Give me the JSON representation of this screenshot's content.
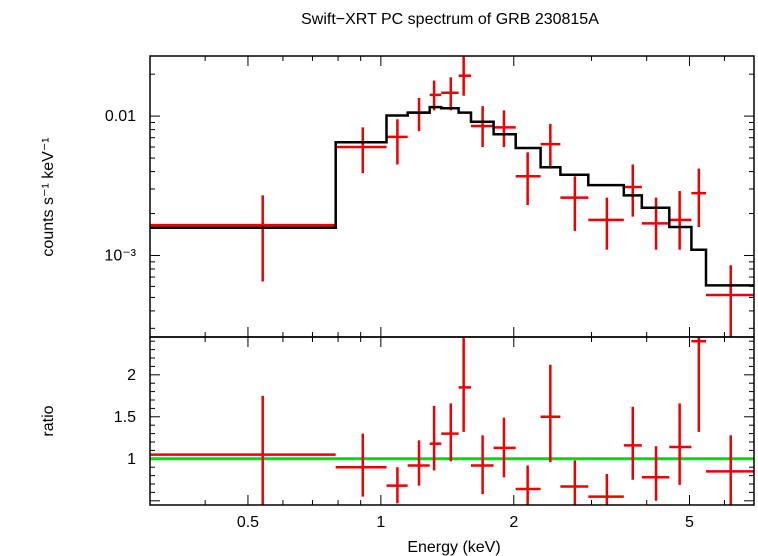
{
  "chart_data": {
    "type": "scatter",
    "title": "Swift−XRT PC spectrum of GRB 230815A",
    "xlabel": "Energy (keV)",
    "xscale": "log",
    "xlim": [
      0.3,
      7.0
    ],
    "x_ticks": [
      {
        "value": 0.5,
        "label": "0.5"
      },
      {
        "value": 1,
        "label": "1"
      },
      {
        "value": 2,
        "label": "2"
      },
      {
        "value": 5,
        "label": "5"
      }
    ],
    "panels": [
      {
        "name": "spectrum",
        "ylabel": "counts s⁻¹ keV⁻¹",
        "yscale": "log",
        "ylim": [
          0.00026,
          0.027
        ],
        "y_ticks": [
          {
            "value": 0.01,
            "label": "0.01"
          },
          {
            "value": 0.001,
            "label": "10⁻³"
          }
        ],
        "series": [
          {
            "role": "data",
            "color": "#ee0000",
            "points": [
              {
                "x": 0.54,
                "xlo": 0.3,
                "xhi": 0.79,
                "y": 0.00165,
                "ylo": 0.00065,
                "yhi": 0.0027
              },
              {
                "x": 0.91,
                "xlo": 0.79,
                "xhi": 1.03,
                "y": 0.006,
                "ylo": 0.0039,
                "yhi": 0.0083
              },
              {
                "x": 1.09,
                "xlo": 1.03,
                "xhi": 1.15,
                "y": 0.0071,
                "ylo": 0.0045,
                "yhi": 0.0095
              },
              {
                "x": 1.22,
                "xlo": 1.15,
                "xhi": 1.29,
                "y": 0.0106,
                "ylo": 0.0078,
                "yhi": 0.0135
              },
              {
                "x": 1.32,
                "xlo": 1.29,
                "xhi": 1.37,
                "y": 0.0142,
                "ylo": 0.011,
                "yhi": 0.018
              },
              {
                "x": 1.44,
                "xlo": 1.37,
                "xhi": 1.5,
                "y": 0.0147,
                "ylo": 0.011,
                "yhi": 0.019
              },
              {
                "x": 1.54,
                "xlo": 1.5,
                "xhi": 1.6,
                "y": 0.0195,
                "ylo": 0.014,
                "yhi": 0.027
              },
              {
                "x": 1.7,
                "xlo": 1.6,
                "xhi": 1.8,
                "y": 0.0085,
                "ylo": 0.006,
                "yhi": 0.0118
              },
              {
                "x": 1.9,
                "xlo": 1.8,
                "xhi": 2.02,
                "y": 0.0083,
                "ylo": 0.006,
                "yhi": 0.011
              },
              {
                "x": 2.15,
                "xlo": 2.02,
                "xhi": 2.3,
                "y": 0.0037,
                "ylo": 0.0023,
                "yhi": 0.0055
              },
              {
                "x": 2.42,
                "xlo": 2.3,
                "xhi": 2.55,
                "y": 0.0063,
                "ylo": 0.0042,
                "yhi": 0.0088
              },
              {
                "x": 2.75,
                "xlo": 2.55,
                "xhi": 2.95,
                "y": 0.0026,
                "ylo": 0.0015,
                "yhi": 0.0037
              },
              {
                "x": 3.25,
                "xlo": 2.95,
                "xhi": 3.55,
                "y": 0.0018,
                "ylo": 0.0011,
                "yhi": 0.0026
              },
              {
                "x": 3.72,
                "xlo": 3.55,
                "xhi": 3.9,
                "y": 0.0031,
                "ylo": 0.0019,
                "yhi": 0.0045
              },
              {
                "x": 4.2,
                "xlo": 3.9,
                "xhi": 4.5,
                "y": 0.0017,
                "ylo": 0.0011,
                "yhi": 0.0026
              },
              {
                "x": 4.75,
                "xlo": 4.5,
                "xhi": 5.05,
                "y": 0.0018,
                "ylo": 0.0011,
                "yhi": 0.0029
              },
              {
                "x": 5.25,
                "xlo": 5.05,
                "xhi": 5.45,
                "y": 0.0028,
                "ylo": 0.0016,
                "yhi": 0.0042
              },
              {
                "x": 6.2,
                "xlo": 5.45,
                "xhi": 7.0,
                "y": 0.00052,
                "ylo": 0.00026,
                "yhi": 0.00085
              }
            ]
          },
          {
            "role": "model",
            "color": "#000000",
            "type": "step",
            "bins": [
              {
                "xlo": 0.3,
                "xhi": 0.79,
                "y": 0.00158
              },
              {
                "xlo": 0.79,
                "xhi": 1.03,
                "y": 0.0065
              },
              {
                "xlo": 1.03,
                "xhi": 1.15,
                "y": 0.0101
              },
              {
                "xlo": 1.15,
                "xhi": 1.29,
                "y": 0.0106
              },
              {
                "xlo": 1.29,
                "xhi": 1.37,
                "y": 0.0116
              },
              {
                "xlo": 1.37,
                "xhi": 1.5,
                "y": 0.0114
              },
              {
                "xlo": 1.5,
                "xhi": 1.6,
                "y": 0.0106
              },
              {
                "xlo": 1.6,
                "xhi": 1.8,
                "y": 0.0091
              },
              {
                "xlo": 1.8,
                "xhi": 2.02,
                "y": 0.0074
              },
              {
                "xlo": 2.02,
                "xhi": 2.3,
                "y": 0.0059
              },
              {
                "xlo": 2.3,
                "xhi": 2.55,
                "y": 0.0043
              },
              {
                "xlo": 2.55,
                "xhi": 2.95,
                "y": 0.0038
              },
              {
                "xlo": 2.95,
                "xhi": 3.55,
                "y": 0.0032
              },
              {
                "xlo": 3.55,
                "xhi": 3.9,
                "y": 0.0027
              },
              {
                "xlo": 3.9,
                "xhi": 4.5,
                "y": 0.0022
              },
              {
                "xlo": 4.5,
                "xhi": 5.05,
                "y": 0.0016
              },
              {
                "xlo": 5.05,
                "xhi": 5.45,
                "y": 0.0011
              },
              {
                "xlo": 5.45,
                "xhi": 7.0,
                "y": 0.00061
              }
            ]
          }
        ]
      },
      {
        "name": "ratio",
        "ylabel": "ratio",
        "yscale": "linear",
        "ylim": [
          0.45,
          2.45
        ],
        "y_ticks": [
          {
            "value": 1,
            "label": "1"
          },
          {
            "value": 1.5,
            "label": "1.5"
          },
          {
            "value": 2,
            "label": "2"
          }
        ],
        "reference_line": {
          "y": 1,
          "color": "#00dd00"
        },
        "series": [
          {
            "role": "ratio",
            "color": "#ee0000",
            "points": [
              {
                "x": 0.54,
                "xlo": 0.3,
                "xhi": 0.79,
                "y": 1.05,
                "ylo": 0.45,
                "yhi": 1.75
              },
              {
                "x": 0.91,
                "xlo": 0.79,
                "xhi": 1.03,
                "y": 0.9,
                "ylo": 0.55,
                "yhi": 1.3
              },
              {
                "x": 1.09,
                "xlo": 1.03,
                "xhi": 1.15,
                "y": 0.68,
                "ylo": 0.47,
                "yhi": 0.9
              },
              {
                "x": 1.22,
                "xlo": 1.15,
                "xhi": 1.29,
                "y": 0.92,
                "ylo": 0.68,
                "yhi": 1.22
              },
              {
                "x": 1.32,
                "xlo": 1.29,
                "xhi": 1.37,
                "y": 1.18,
                "ylo": 0.86,
                "yhi": 1.63
              },
              {
                "x": 1.44,
                "xlo": 1.37,
                "xhi": 1.5,
                "y": 1.3,
                "ylo": 0.97,
                "yhi": 1.66
              },
              {
                "x": 1.54,
                "xlo": 1.5,
                "xhi": 1.6,
                "y": 1.85,
                "ylo": 1.32,
                "yhi": 2.45
              },
              {
                "x": 1.7,
                "xlo": 1.6,
                "xhi": 1.8,
                "y": 0.92,
                "ylo": 0.58,
                "yhi": 1.28
              },
              {
                "x": 1.9,
                "xlo": 1.8,
                "xhi": 2.02,
                "y": 1.13,
                "ylo": 0.78,
                "yhi": 1.49
              },
              {
                "x": 2.15,
                "xlo": 2.02,
                "xhi": 2.3,
                "y": 0.64,
                "ylo": 0.45,
                "yhi": 0.92
              },
              {
                "x": 2.42,
                "xlo": 2.3,
                "xhi": 2.55,
                "y": 1.5,
                "ylo": 0.96,
                "yhi": 2.12
              },
              {
                "x": 2.75,
                "xlo": 2.55,
                "xhi": 2.95,
                "y": 0.67,
                "ylo": 0.45,
                "yhi": 0.98
              },
              {
                "x": 3.25,
                "xlo": 2.95,
                "xhi": 3.55,
                "y": 0.55,
                "ylo": 0.45,
                "yhi": 0.82
              },
              {
                "x": 3.72,
                "xlo": 3.55,
                "xhi": 3.9,
                "y": 1.16,
                "ylo": 0.75,
                "yhi": 1.62
              },
              {
                "x": 4.2,
                "xlo": 3.9,
                "xhi": 4.5,
                "y": 0.78,
                "ylo": 0.5,
                "yhi": 1.15
              },
              {
                "x": 4.75,
                "xlo": 4.5,
                "xhi": 5.05,
                "y": 1.14,
                "ylo": 0.69,
                "yhi": 1.66
              },
              {
                "x": 5.25,
                "xlo": 5.05,
                "xhi": 5.45,
                "y": 2.4,
                "ylo": 1.32,
                "yhi": 2.45
              },
              {
                "x": 6.2,
                "xlo": 5.45,
                "xhi": 7.0,
                "y": 0.85,
                "ylo": 0.45,
                "yhi": 1.28
              }
            ]
          }
        ]
      }
    ],
    "grid": false,
    "legend": "none"
  }
}
